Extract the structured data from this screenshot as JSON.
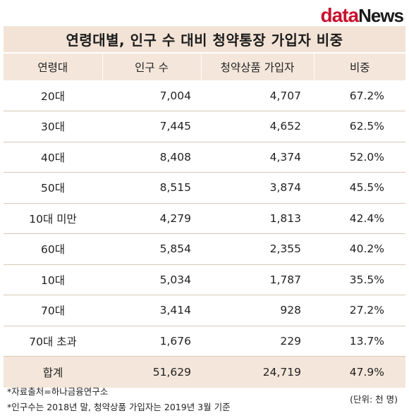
{
  "logo": {
    "part1": "data",
    "part2": "News"
  },
  "title": "연령대별, 인구 수 대비 청약통장 가입자 비중",
  "headers": [
    "연령대",
    "인구 수",
    "청약상품 가입자",
    "비중"
  ],
  "rows": [
    {
      "age": "20대",
      "population": "7,004",
      "subscribers": "4,707",
      "ratio": "67.2%",
      "highlight": true
    },
    {
      "age": "30대",
      "population": "7,445",
      "subscribers": "4,652",
      "ratio": "62.5%",
      "highlight": false
    },
    {
      "age": "40대",
      "population": "8,408",
      "subscribers": "4,374",
      "ratio": "52.0%",
      "highlight": false
    },
    {
      "age": "50대",
      "population": "8,515",
      "subscribers": "3,874",
      "ratio": "45.5%",
      "highlight": false
    },
    {
      "age": "10대 미만",
      "population": "4,279",
      "subscribers": "1,813",
      "ratio": "42.4%",
      "highlight": true
    },
    {
      "age": "60대",
      "population": "5,854",
      "subscribers": "2,355",
      "ratio": "40.2%",
      "highlight": false
    },
    {
      "age": "10대",
      "population": "5,034",
      "subscribers": "1,787",
      "ratio": "35.5%",
      "highlight": false
    },
    {
      "age": "70대",
      "population": "3,414",
      "subscribers": "928",
      "ratio": "27.2%",
      "highlight": false
    },
    {
      "age": "70대 초과",
      "population": "1,676",
      "subscribers": "229",
      "ratio": "13.7%",
      "highlight": false
    }
  ],
  "total": {
    "age": "합계",
    "population": "51,629",
    "subscribers": "24,719",
    "ratio": "47.9%"
  },
  "notes": {
    "source": "*자료출처=하나금융연구소",
    "basis": "*인구수는 2018년 말, 청약상품 가입자는 2019년 3월 기준",
    "unit": "(단위: 천 명)"
  },
  "colors": {
    "header_bg": "#f4e6da",
    "title_bg": "#f2e3d6",
    "logo_accent": "#c8102e",
    "row_divider": "#d9c8b6"
  }
}
